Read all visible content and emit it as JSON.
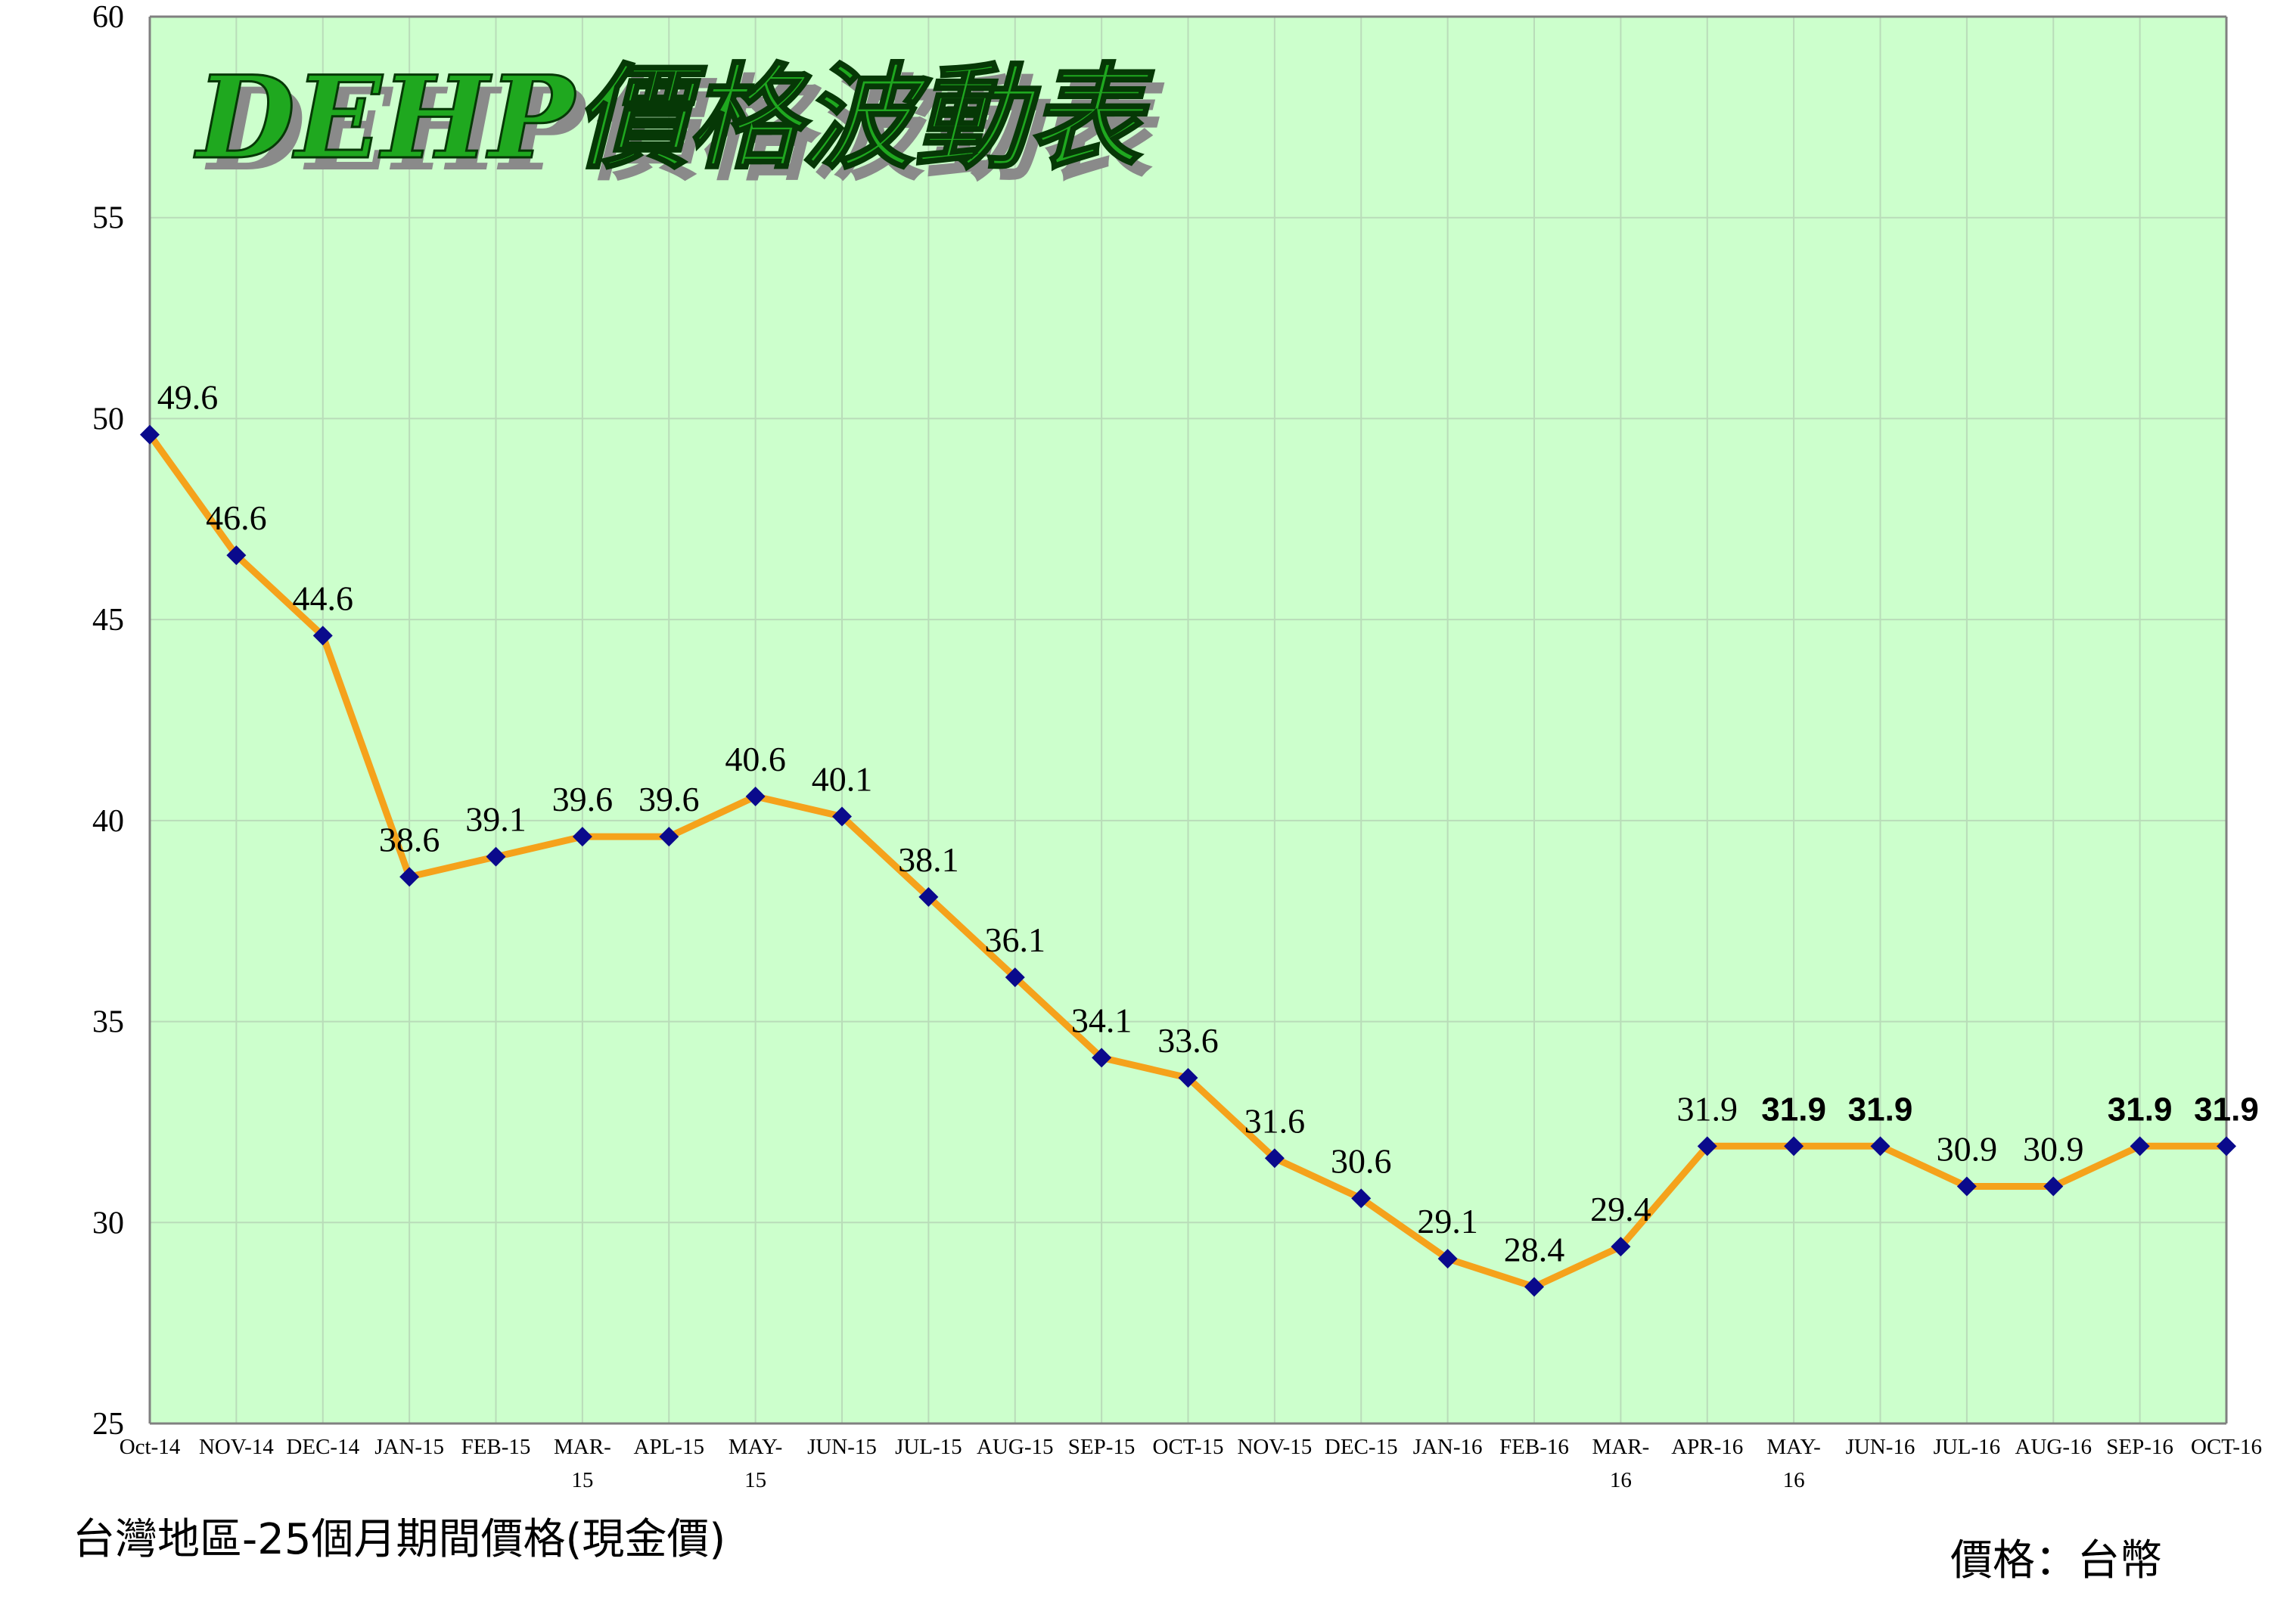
{
  "chart_data": {
    "type": "line",
    "title": "DEHP價格波動表",
    "categories": [
      "Oct-14",
      "NOV-14",
      "DEC-14",
      "JAN-15",
      "FEB-15",
      "MAR-\n15",
      "APL-15",
      "MAY-\n15",
      "JUN-15",
      "JUL-15",
      "AUG-15",
      "SEP-15",
      "OCT-15",
      "NOV-15",
      "DEC-15",
      "JAN-16",
      "FEB-16",
      "MAR-\n16",
      "APR-16",
      "MAY-\n16",
      "JUN-16",
      "JUL-16",
      "AUG-16",
      "SEP-16",
      "OCT-16"
    ],
    "values": [
      49.6,
      46.6,
      44.6,
      38.6,
      39.1,
      39.6,
      39.6,
      40.6,
      40.1,
      38.1,
      36.1,
      34.1,
      33.6,
      31.6,
      30.6,
      29.1,
      28.4,
      29.4,
      31.9,
      31.9,
      31.9,
      30.9,
      30.9,
      31.9,
      31.9
    ],
    "data_labels": [
      "49.6",
      "46.6",
      "44.6",
      "38.6",
      "39.1",
      "39.6",
      "39.6",
      "40.6",
      "40.1",
      "38.1",
      "36.1",
      "34.1",
      "33.6",
      "31.6",
      "30.6",
      "29.1",
      "28.4",
      "29.4",
      "31.9",
      "31.9",
      "31.9",
      "30.9",
      "30.9",
      "31.9",
      "31.9"
    ],
    "ylim": [
      25,
      60
    ],
    "yticks": [
      25,
      30,
      35,
      40,
      45,
      50,
      55,
      60
    ],
    "grid": true,
    "legend": "none",
    "colors": {
      "plot_background": "#ccffcc",
      "line": "#f5a21b",
      "marker": "#0a0a8c",
      "grid": "#b9dcb9",
      "axis": "#808080",
      "title_fill": "#1fa81f",
      "title_outline": "#063806",
      "title_shadow": "#8a8a8a"
    }
  },
  "captions": {
    "left": "台灣地區-25個月期間價格(現金價)",
    "right": "價格：台幣"
  }
}
